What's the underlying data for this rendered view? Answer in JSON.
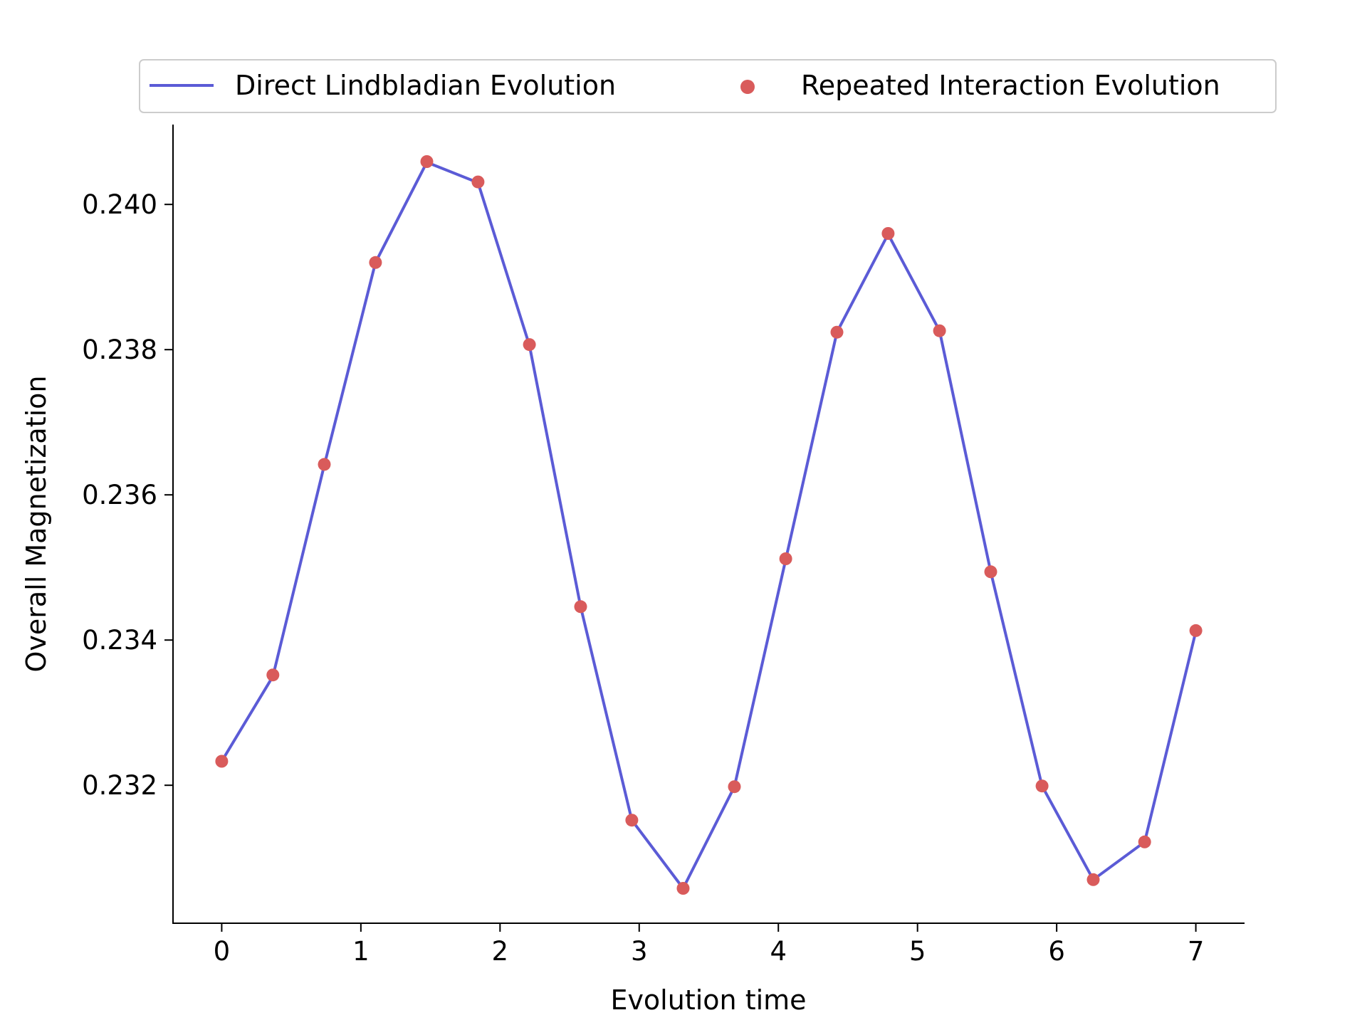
{
  "chart_data": {
    "type": "line",
    "title": "",
    "xlabel": "Evolution time",
    "ylabel": "Overall Magnetization",
    "xlim": [
      -0.35,
      7.35
    ],
    "ylim": [
      0.2301,
      0.2411
    ],
    "xticks": [
      0,
      1,
      2,
      3,
      4,
      5,
      6,
      7
    ],
    "xtick_labels": [
      "0",
      "1",
      "2",
      "3",
      "4",
      "5",
      "6",
      "7"
    ],
    "yticks": [
      0.232,
      0.234,
      0.236,
      0.238,
      0.24
    ],
    "ytick_labels": [
      "0.232",
      "0.234",
      "0.236",
      "0.238",
      "0.240"
    ],
    "grid": false,
    "legend": "top-center, outside plot, 2 columns",
    "x": [
      0,
      0.368,
      0.737,
      1.105,
      1.474,
      1.842,
      2.211,
      2.579,
      2.947,
      3.316,
      3.684,
      4.053,
      4.421,
      4.789,
      5.158,
      5.526,
      5.895,
      6.263,
      6.632,
      7.0
    ],
    "series": [
      {
        "name": "Direct Lindbladian Evolution",
        "kind": "line",
        "color": "#5b5bd6",
        "values": [
          0.23233,
          0.2335,
          0.23641,
          0.2392,
          0.24058,
          0.2403,
          0.23806,
          0.23446,
          0.23152,
          0.23058,
          0.23198,
          0.23511,
          0.23824,
          0.23959,
          0.23826,
          0.23494,
          0.23199,
          0.2307,
          0.23122,
          0.23412
        ]
      },
      {
        "name": "Repeated Interaction Evolution",
        "kind": "scatter",
        "color": "#d95b5b",
        "values": [
          0.23233,
          0.23352,
          0.23642,
          0.2392,
          0.24059,
          0.24031,
          0.23807,
          0.23446,
          0.23152,
          0.23058,
          0.23198,
          0.23512,
          0.23824,
          0.2396,
          0.23826,
          0.23494,
          0.23199,
          0.2307,
          0.23122,
          0.23413
        ]
      }
    ]
  }
}
